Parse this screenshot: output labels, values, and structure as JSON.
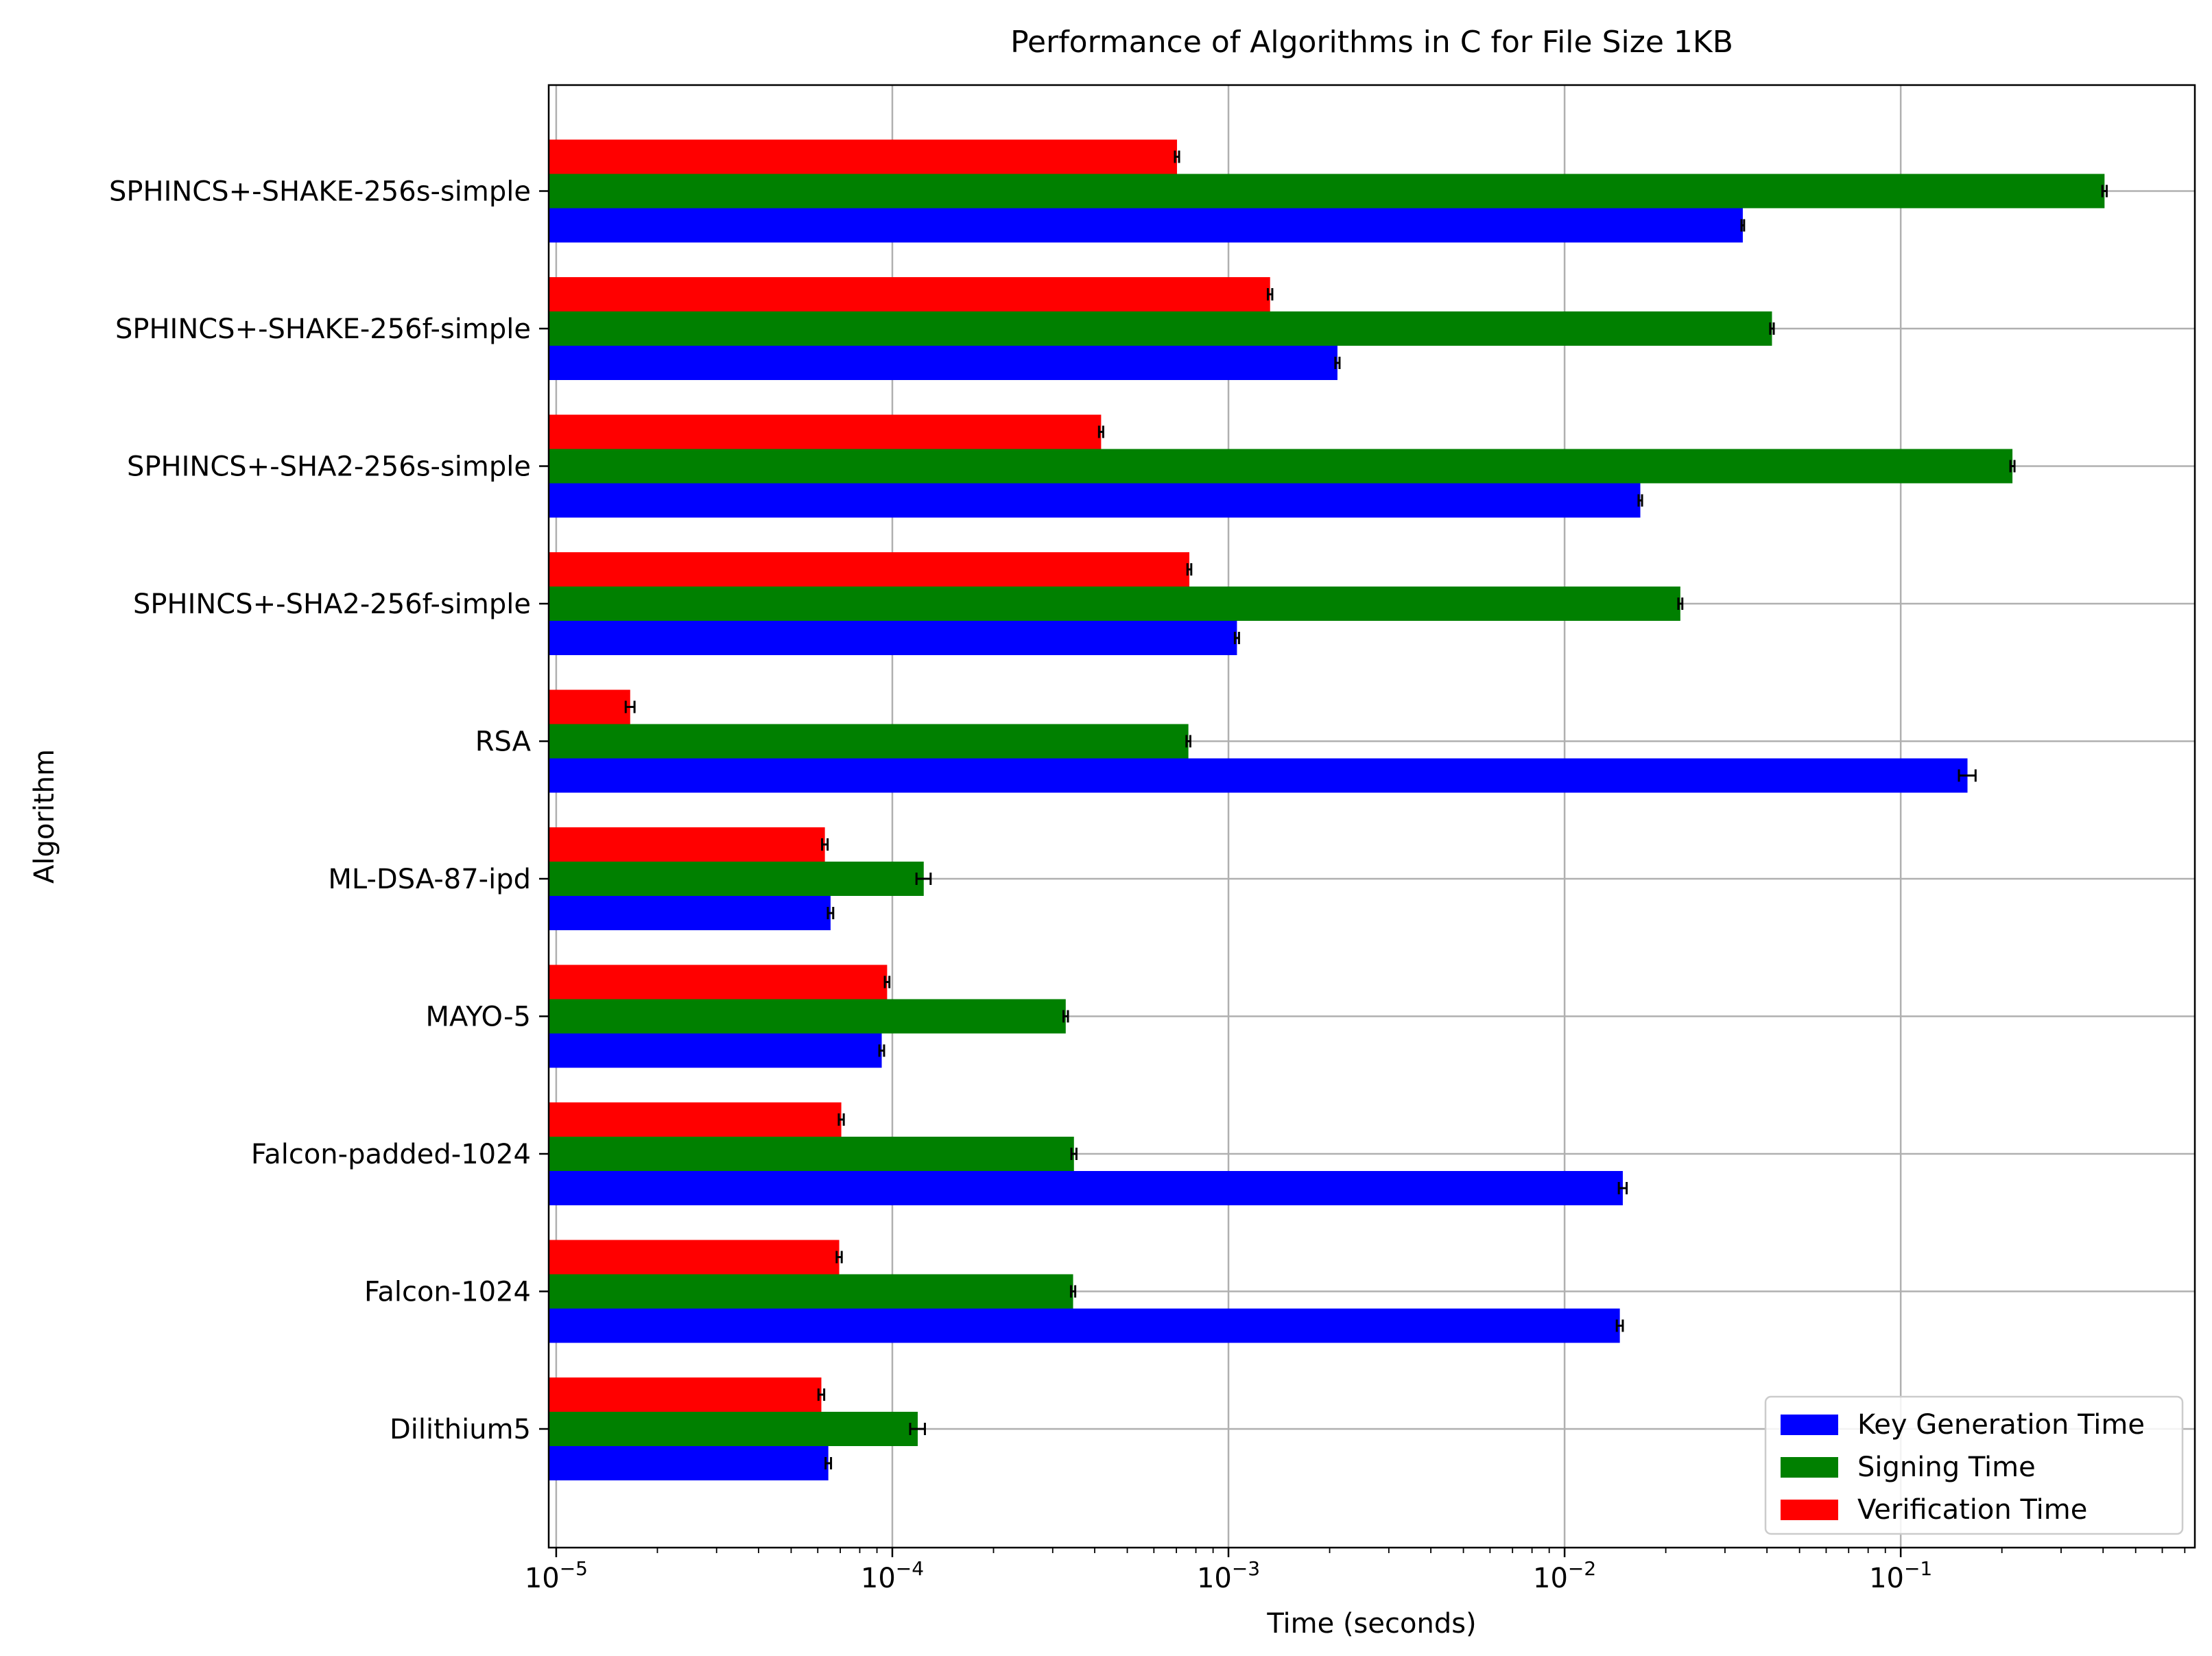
{
  "chart_data": {
    "type": "bar",
    "orientation": "horizontal",
    "title": "Performance of Algorithms in C for File Size 1KB",
    "xlabel": "Time (seconds)",
    "ylabel": "Algorithm",
    "xscale": "log",
    "xlim": [
      9.5e-06,
      0.75
    ],
    "grid": true,
    "legend_position": "lower-right",
    "x_ticks": [
      {
        "value": 1e-05,
        "base": "10",
        "exp": "−5"
      },
      {
        "value": 0.0001,
        "base": "10",
        "exp": "−4"
      },
      {
        "value": 0.001,
        "base": "10",
        "exp": "−3"
      },
      {
        "value": 0.01,
        "base": "10",
        "exp": "−2"
      },
      {
        "value": 0.1,
        "base": "10",
        "exp": "−1"
      }
    ],
    "categories": [
      "Dilithium5",
      "Falcon-1024",
      "Falcon-padded-1024",
      "MAYO-5",
      "ML-DSA-87-ipd",
      "RSA",
      "SPHINCS+-SHA2-256f-simple",
      "SPHINCS+-SHA2-256s-simple",
      "SPHINCS+-SHAKE-256f-simple",
      "SPHINCS+-SHAKE-256s-simple"
    ],
    "series": [
      {
        "name": "Key Generation Time",
        "color": "#0000ff",
        "values": [
          6.45e-05,
          0.0146,
          0.0149,
          9.3e-05,
          6.55e-05,
          0.158,
          0.00106,
          0.0168,
          0.00211,
          0.0339
        ],
        "errors": [
          1.2e-06,
          0.0003,
          0.0004,
          1.5e-06,
          1.2e-06,
          0.009,
          1.5e-05,
          0.0002,
          3e-05,
          0.0003
        ]
      },
      {
        "name": "Signing Time",
        "color": "#008000",
        "values": [
          0.000119,
          0.000345,
          0.000347,
          0.000328,
          0.000124,
          0.00076,
          0.0221,
          0.215,
          0.0414,
          0.404
        ],
        "errors": [
          6e-06,
          5e-06,
          6e-06,
          5e-06,
          6e-06,
          1e-05,
          0.0003,
          0.003,
          0.0005,
          0.006
        ]
      },
      {
        "name": "Verification Time",
        "color": "#ff0000",
        "values": [
          6.15e-05,
          6.95e-05,
          7.05e-05,
          9.65e-05,
          6.3e-05,
          1.66e-05,
          0.000765,
          0.000418,
          0.00133,
          0.000703
        ],
        "errors": [
          1.2e-06,
          1.2e-06,
          1.2e-06,
          1.5e-06,
          1.2e-06,
          5e-07,
          1e-05,
          6e-06,
          2e-05,
          1e-05
        ]
      }
    ]
  }
}
